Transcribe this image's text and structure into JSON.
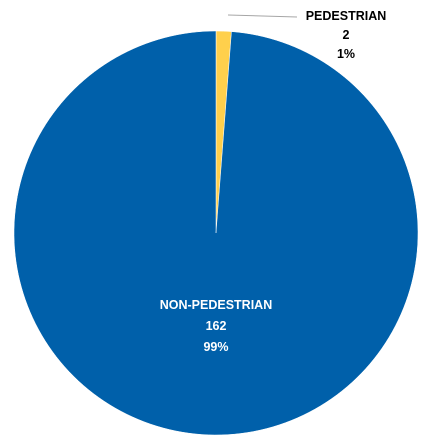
{
  "chart_data": {
    "type": "pie",
    "title": "",
    "legend": "none",
    "slices": [
      {
        "name": "PEDESTRIAN",
        "value": 2,
        "percent_label": "1%",
        "color": "#ffd04c"
      },
      {
        "name": "NON-PEDESTRIAN",
        "value": 162,
        "percent_label": "99%",
        "color": "#0060aa"
      }
    ],
    "label_color_inside": "#ffffff",
    "label_color_outside": "#000000",
    "leader_line_color": "#a6a6a6"
  }
}
